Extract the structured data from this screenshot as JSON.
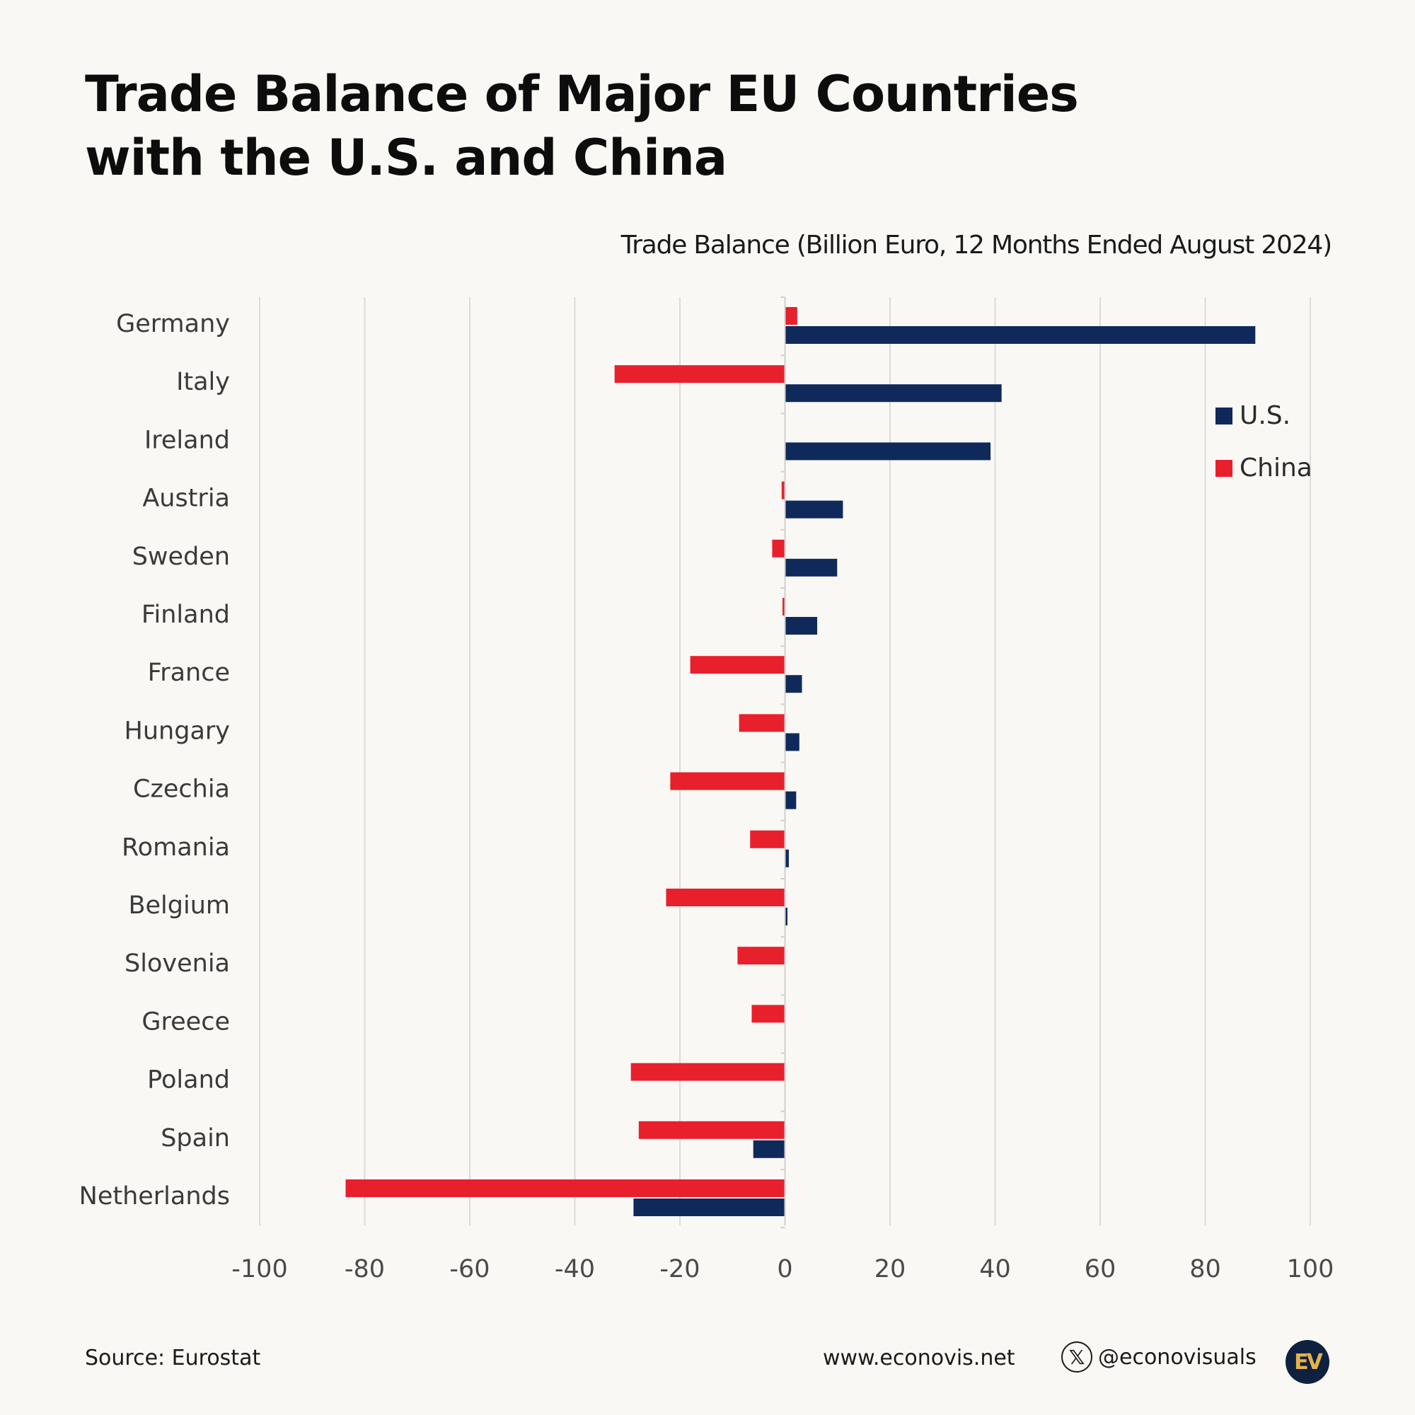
{
  "title_lines": [
    "Trade Balance of Major EU Countries",
    "with the U.S. and China"
  ],
  "chart_data": {
    "type": "bar",
    "orientation": "horizontal",
    "title": "Trade Balance of Major EU Countries with the U.S. and China",
    "subtitle": "Trade Balance (Billion Euro, 12 Months Ended August 2024)",
    "categories": [
      "Germany",
      "Italy",
      "Ireland",
      "Austria",
      "Sweden",
      "Finland",
      "France",
      "Hungary",
      "Czechia",
      "Romania",
      "Belgium",
      "Slovenia",
      "Greece",
      "Poland",
      "Spain",
      "Netherlands"
    ],
    "series": [
      {
        "name": "China",
        "color": "#e8202c",
        "values": [
          2.2,
          -32.3,
          0,
          -0.5,
          -2.3,
          -0.2,
          -17.9,
          -8.6,
          -21.7,
          -6.5,
          -22.5,
          -8.9,
          -6.2,
          -29.2,
          -27.7,
          -83.5
        ]
      },
      {
        "name": "U.S.",
        "color": "#0f2a5a",
        "values": [
          89.4,
          41.1,
          39.0,
          10.9,
          9.8,
          6.0,
          3.1,
          2.6,
          2.0,
          0.6,
          0.3,
          0,
          0,
          0,
          -5.9,
          -28.7
        ]
      }
    ],
    "legend_order": [
      "U.S.",
      "China"
    ],
    "legend_position": "top-right",
    "xlim": [
      -100,
      100
    ],
    "x_ticks": [
      -100,
      -80,
      -60,
      -40,
      -20,
      0,
      20,
      40,
      60,
      80,
      100
    ],
    "grid": true
  },
  "footer": {
    "source": "Source: Eurostat",
    "website": "www.econovis.net",
    "x_icon": "x-logo-icon",
    "handle": "@econovisuals",
    "logo_text": "EV"
  }
}
